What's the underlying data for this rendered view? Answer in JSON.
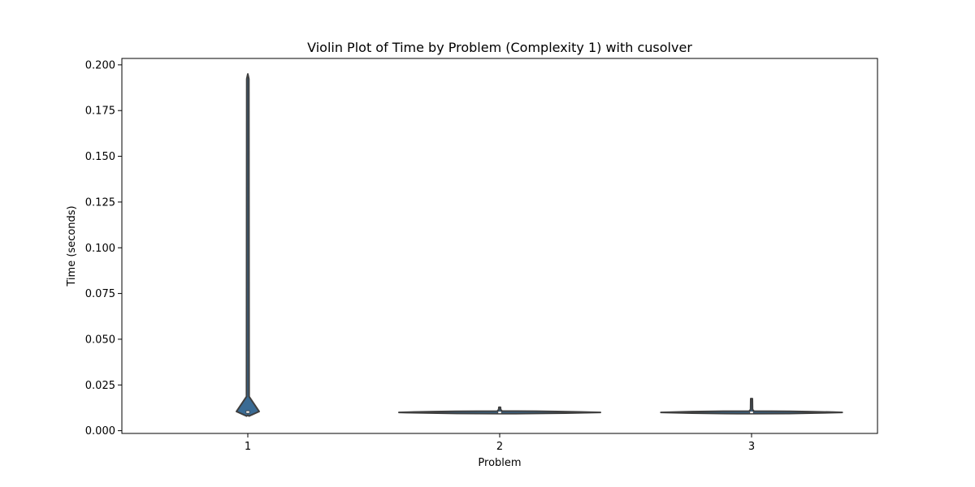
{
  "chart_data": {
    "type": "violin",
    "title": "Violin Plot of Time by Problem (Complexity 1) with cusolver",
    "xlabel": "Problem",
    "ylabel": "Time (seconds)",
    "categories": [
      "1",
      "2",
      "3"
    ],
    "ylim": [
      -0.0015,
      0.2035
    ],
    "yticks": [
      0.0,
      0.025,
      0.05,
      0.075,
      0.1,
      0.125,
      0.15,
      0.175,
      0.2
    ],
    "ytick_labels": [
      "0.000",
      "0.025",
      "0.050",
      "0.075",
      "0.100",
      "0.125",
      "0.150",
      "0.175",
      "0.200"
    ],
    "grid": false,
    "violins": [
      {
        "category": "1",
        "min": 0.0085,
        "max": 0.195,
        "q1": 0.0098,
        "median": 0.0102,
        "q3": 0.0106,
        "peak": 0.0105,
        "max_density_width": 0.09
      },
      {
        "category": "2",
        "min": 0.0095,
        "max": 0.0128,
        "q1": 0.0099,
        "median": 0.01,
        "q3": 0.0102,
        "peak": 0.01,
        "max_density_width": 0.8
      },
      {
        "category": "3",
        "min": 0.0095,
        "max": 0.0175,
        "q1": 0.0099,
        "median": 0.01,
        "q3": 0.0102,
        "peak": 0.01,
        "max_density_width": 0.72
      }
    ],
    "colors": {
      "fill": "#3a6b94",
      "edge": "#3f3f3f",
      "median": "#ffffff"
    }
  }
}
